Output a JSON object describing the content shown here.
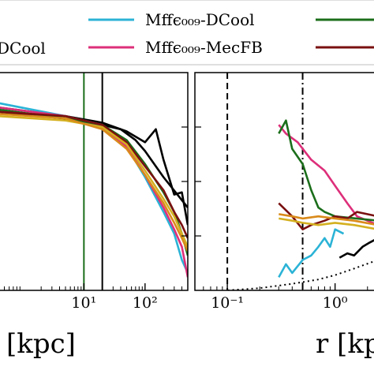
{
  "legend": {
    "entries": [
      {
        "label": "DCool",
        "color": "#000000",
        "visible_line": false
      },
      {
        "label": "Mffϵ₀₀₉-DCool",
        "color": "#2bb3d6"
      },
      {
        "label": "Mffϵ₀₀₉-MecFB",
        "color": "#dd2f7a"
      },
      {
        "label": "",
        "color": "#1b6e1b"
      },
      {
        "label": "",
        "color": "#7a1010"
      }
    ]
  },
  "chart_data": [
    {
      "type": "line",
      "panel": "left",
      "xscale": "log",
      "xlim": [
        0.4,
        500
      ],
      "ylim": [
        0,
        1
      ],
      "xticks": [
        {
          "value": 10,
          "label": "10¹"
        },
        {
          "value": 100,
          "label": "10²"
        }
      ],
      "xlabel": "[kpc]",
      "vlines": [
        {
          "x": 10,
          "color": "#1b6e1b",
          "style": "solid"
        },
        {
          "x": 20,
          "color": "#000000",
          "style": "solid"
        }
      ],
      "series": [
        {
          "color": "#000000",
          "points": [
            [
              0.4,
              0.82
            ],
            [
              2,
              0.8
            ],
            [
              10,
              0.78
            ],
            [
              20,
              0.76
            ],
            [
              40,
              0.74
            ],
            [
              70,
              0.69
            ],
            [
              100,
              0.64
            ],
            [
              200,
              0.52
            ],
            [
              500,
              0.38
            ]
          ]
        },
        {
          "color": "#000000",
          "points": [
            [
              0.4,
              0.84
            ],
            [
              5,
              0.8
            ],
            [
              20,
              0.77
            ],
            [
              50,
              0.73
            ],
            [
              100,
              0.68
            ],
            [
              150,
              0.74
            ],
            [
              200,
              0.6
            ],
            [
              300,
              0.44
            ],
            [
              400,
              0.45
            ],
            [
              500,
              0.3
            ]
          ]
        },
        {
          "color": "#2bb3d6",
          "points": [
            [
              0.4,
              0.86
            ],
            [
              5,
              0.8
            ],
            [
              20,
              0.76
            ],
            [
              50,
              0.66
            ],
            [
              100,
              0.52
            ],
            [
              200,
              0.36
            ],
            [
              300,
              0.26
            ],
            [
              400,
              0.14
            ],
            [
              500,
              0.08
            ]
          ]
        },
        {
          "color": "#dd2f7a",
          "points": [
            [
              0.4,
              0.84
            ],
            [
              5,
              0.8
            ],
            [
              20,
              0.75
            ],
            [
              50,
              0.66
            ],
            [
              100,
              0.53
            ],
            [
              200,
              0.38
            ],
            [
              300,
              0.28
            ],
            [
              400,
              0.2
            ],
            [
              500,
              0.06
            ]
          ]
        },
        {
          "color": "#1b6e1b",
          "points": [
            [
              0.4,
              0.83
            ],
            [
              5,
              0.79
            ],
            [
              20,
              0.76
            ],
            [
              50,
              0.69
            ],
            [
              100,
              0.58
            ],
            [
              200,
              0.45
            ],
            [
              300,
              0.36
            ],
            [
              400,
              0.26
            ],
            [
              500,
              0.16
            ]
          ]
        },
        {
          "color": "#7a1010",
          "points": [
            [
              0.4,
              0.82
            ],
            [
              5,
              0.8
            ],
            [
              20,
              0.76
            ],
            [
              50,
              0.68
            ],
            [
              100,
              0.57
            ],
            [
              200,
              0.46
            ],
            [
              300,
              0.36
            ],
            [
              400,
              0.3
            ],
            [
              500,
              0.24
            ]
          ]
        },
        {
          "color": "#d4b020",
          "points": [
            [
              0.4,
              0.8
            ],
            [
              5,
              0.78
            ],
            [
              20,
              0.75
            ],
            [
              50,
              0.67
            ],
            [
              100,
              0.55
            ],
            [
              200,
              0.42
            ],
            [
              300,
              0.34
            ],
            [
              400,
              0.26
            ],
            [
              500,
              0.2
            ]
          ]
        },
        {
          "color": "#d98a1a",
          "points": [
            [
              0.4,
              0.81
            ],
            [
              5,
              0.79
            ],
            [
              20,
              0.74
            ],
            [
              50,
              0.65
            ],
            [
              100,
              0.53
            ],
            [
              200,
              0.4
            ],
            [
              300,
              0.31
            ],
            [
              400,
              0.24
            ],
            [
              500,
              0.18
            ]
          ]
        }
      ]
    },
    {
      "type": "line",
      "panel": "right",
      "xscale": "log",
      "xlim": [
        0.05,
        2.5
      ],
      "ylim": [
        0,
        1
      ],
      "xticks": [
        {
          "value": 0.1,
          "label": "10⁻¹"
        },
        {
          "value": 1,
          "label": "10⁰"
        }
      ],
      "xlabel": "r [kpc]",
      "vlines": [
        {
          "x": 0.1,
          "color": "#000000",
          "style": "dashed"
        },
        {
          "x": 0.5,
          "color": "#000000",
          "style": "dashdot"
        }
      ],
      "series": [
        {
          "color": "#dd2f7a",
          "points": [
            [
              0.3,
              0.76
            ],
            [
              0.35,
              0.72
            ],
            [
              0.45,
              0.68
            ],
            [
              0.6,
              0.6
            ],
            [
              0.8,
              0.55
            ],
            [
              1,
              0.48
            ],
            [
              1.3,
              0.4
            ],
            [
              1.6,
              0.34
            ],
            [
              2.5,
              0.3
            ]
          ]
        },
        {
          "color": "#1b6e1b",
          "points": [
            [
              0.3,
              0.72
            ],
            [
              0.35,
              0.78
            ],
            [
              0.4,
              0.65
            ],
            [
              0.5,
              0.58
            ],
            [
              0.6,
              0.46
            ],
            [
              0.7,
              0.38
            ],
            [
              0.8,
              0.36
            ],
            [
              1,
              0.34
            ],
            [
              2.5,
              0.32
            ]
          ]
        },
        {
          "color": "#7a1010",
          "points": [
            [
              0.3,
              0.4
            ],
            [
              0.4,
              0.34
            ],
            [
              0.5,
              0.28
            ],
            [
              0.6,
              0.3
            ],
            [
              0.8,
              0.32
            ],
            [
              1,
              0.34
            ],
            [
              1.3,
              0.33
            ],
            [
              1.6,
              0.36
            ],
            [
              2.5,
              0.34
            ]
          ]
        },
        {
          "color": "#d4b020",
          "points": [
            [
              0.3,
              0.33
            ],
            [
              0.4,
              0.32
            ],
            [
              0.5,
              0.31
            ],
            [
              0.7,
              0.3
            ],
            [
              1,
              0.31
            ],
            [
              1.5,
              0.3
            ],
            [
              2.5,
              0.28
            ]
          ]
        },
        {
          "color": "#d98a1a",
          "points": [
            [
              0.3,
              0.35
            ],
            [
              0.4,
              0.34
            ],
            [
              0.5,
              0.33
            ],
            [
              0.7,
              0.34
            ],
            [
              1,
              0.33
            ],
            [
              1.5,
              0.32
            ],
            [
              2.5,
              0.3
            ]
          ]
        },
        {
          "color": "#2bb3d6",
          "points": [
            [
              0.3,
              0.06
            ],
            [
              0.35,
              0.12
            ],
            [
              0.4,
              0.08
            ],
            [
              0.5,
              0.14
            ],
            [
              0.6,
              0.16
            ],
            [
              0.7,
              0.2
            ],
            [
              0.8,
              0.24
            ],
            [
              0.9,
              0.2
            ],
            [
              1.0,
              0.28
            ],
            [
              1.2,
              0.26
            ]
          ]
        },
        {
          "color": "#000000",
          "points": [
            [
              1.1,
              0.15
            ],
            [
              1.3,
              0.17
            ],
            [
              1.5,
              0.16
            ],
            [
              1.8,
              0.2
            ],
            [
              2.1,
              0.22
            ],
            [
              2.5,
              0.24
            ]
          ]
        },
        {
          "color": "#000000",
          "style": "dotted",
          "points": [
            [
              0.05,
              -0.02
            ],
            [
              0.1,
              0.0
            ],
            [
              0.2,
              0.01
            ],
            [
              0.4,
              0.03
            ],
            [
              0.7,
              0.05
            ],
            [
              1,
              0.07
            ],
            [
              1.5,
              0.1
            ],
            [
              2.5,
              0.14
            ]
          ]
        }
      ]
    }
  ]
}
